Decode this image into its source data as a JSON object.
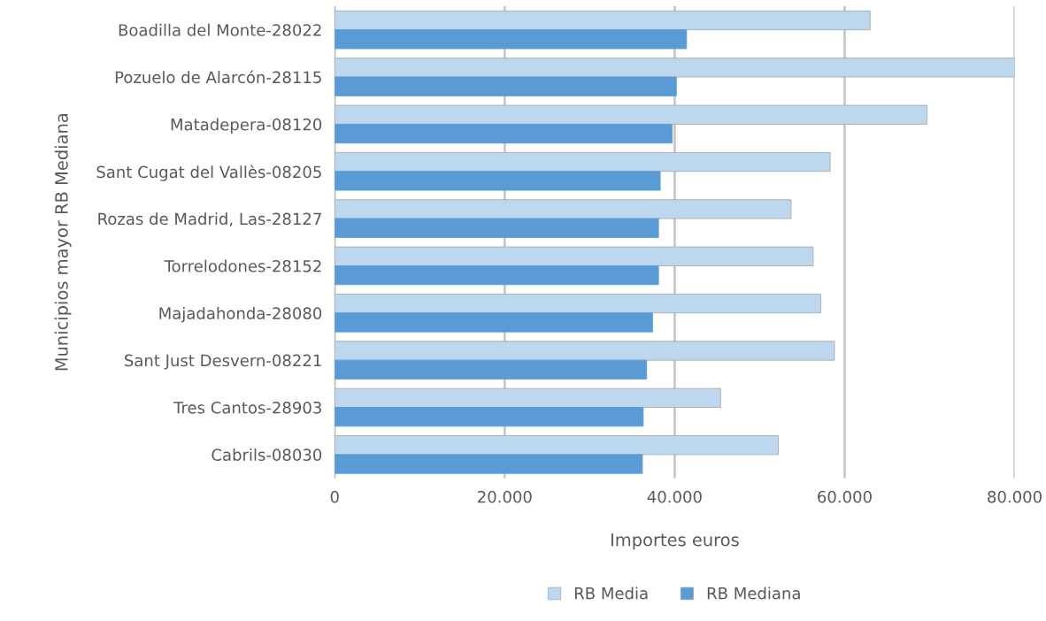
{
  "chart_data": {
    "type": "bar",
    "orientation": "horizontal",
    "categories": [
      "Boadilla del Monte-28022",
      "Pozuelo de Alarcón-28115",
      "Matadepera-08120",
      "Sant Cugat del Vallès-08205",
      "Rozas de Madrid, Las-28127",
      "Torrelodones-28152",
      "Majadahonda-28080",
      "Sant Just Desvern-08221",
      "Tres Cantos-28903",
      "Cabrils-08030"
    ],
    "series": [
      {
        "name": "RB Media",
        "color": "#bdd7ee",
        "values": [
          63000,
          80000,
          69700,
          58300,
          53700,
          56300,
          57200,
          58800,
          45400,
          52200
        ]
      },
      {
        "name": "RB Mediana",
        "color": "#5b9bd5",
        "values": [
          41400,
          40200,
          39700,
          38300,
          38100,
          38100,
          37400,
          36700,
          36300,
          36200
        ]
      }
    ],
    "xlim": [
      0,
      80000
    ],
    "xticks": [
      0,
      {
        "value": 20000,
        "label": "20.000"
      },
      {
        "value": 40000,
        "label": "40.000"
      },
      {
        "value": 60000,
        "label": "60.000"
      },
      {
        "value": 80000,
        "label": "80.000"
      }
    ],
    "xlabel": "Importes euros",
    "ylabel": "Municipios mayor RB Mediana",
    "grid": "x",
    "legend": "bottom"
  }
}
